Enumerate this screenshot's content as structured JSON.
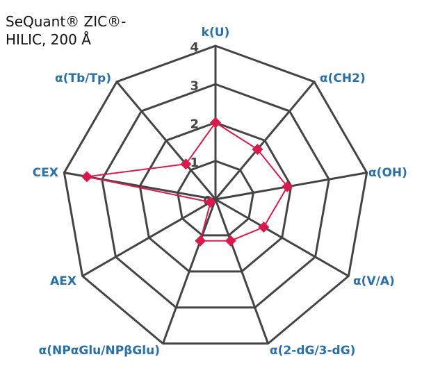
{
  "chart_data": {
    "type": "radar",
    "title": "SeQuant® ZIC®-\nHILIC, 200 Å",
    "axes": [
      "k(U)",
      "α(CH2)",
      "α(OH)",
      "α(V/A)",
      "α(2-dG/3-dG)",
      "α(NPαGlu/NPβGlu)",
      "AEX",
      "CEX",
      "α(Tb/Tp)"
    ],
    "radial_ticks": [
      "0",
      "1",
      "2",
      "3",
      "4"
    ],
    "range": [
      0,
      4
    ],
    "series": [
      {
        "values": [
          2.0,
          1.7,
          1.9,
          1.45,
          1.15,
          1.15,
          0.15,
          3.4,
          1.2
        ],
        "color": "#d81b4a"
      }
    ],
    "grid_color": "#444444",
    "label_color": "#2a6fa6"
  }
}
